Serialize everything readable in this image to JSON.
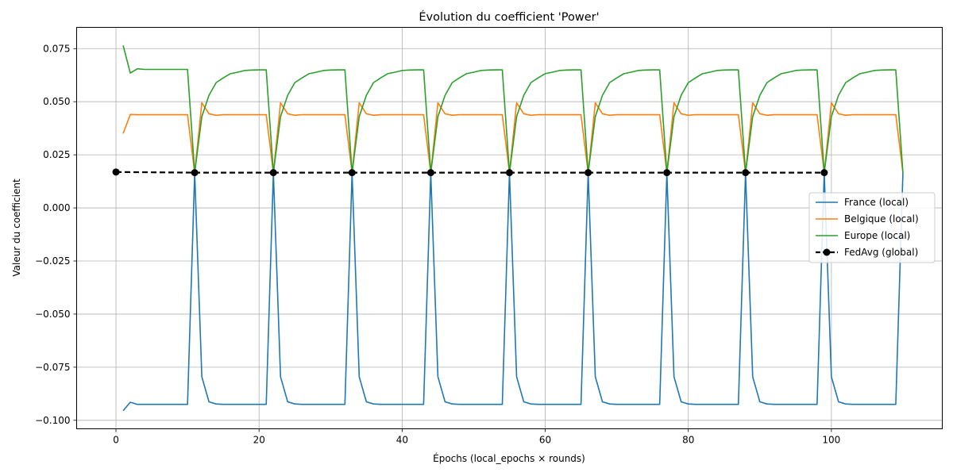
{
  "chart_data": {
    "type": "line",
    "title": "Évolution du coefficient 'Power'",
    "xlabel": "Épochs (local_epochs × rounds)",
    "ylabel": "Valeur du coefficient",
    "xlim": [
      -5.5,
      115.5
    ],
    "ylim": [
      -0.104,
      0.085
    ],
    "x_ticks": [
      0,
      20,
      40,
      60,
      80,
      100
    ],
    "x_tick_labels": [
      "0",
      "20",
      "40",
      "60",
      "80",
      "100"
    ],
    "y_ticks": [
      -0.1,
      -0.075,
      -0.05,
      -0.025,
      0.0,
      0.025,
      0.05,
      0.075
    ],
    "y_tick_labels": [
      "−0.100",
      "−0.075",
      "−0.050",
      "−0.025",
      "0.000",
      "0.025",
      "0.050",
      "0.075"
    ],
    "grid": true,
    "legend_position": "center-right",
    "rounds": 10,
    "local_epochs": 10,
    "series": [
      {
        "name": "France (local)",
        "color": "#1f77b4",
        "style": "solid",
        "first_round": [
          -0.0955,
          -0.0915,
          -0.0925,
          -0.0925,
          -0.0925,
          -0.0925,
          -0.0925,
          -0.0925,
          -0.0925,
          -0.0925
        ],
        "later_rounds": [
          -0.0795,
          -0.0913,
          -0.0923,
          -0.0925,
          -0.0925,
          -0.0925,
          -0.0925,
          -0.0925,
          -0.0925,
          -0.0925
        ],
        "sync_value": 0.0165
      },
      {
        "name": "Belgique (local)",
        "color": "#ff7f0e",
        "style": "solid",
        "first_round": [
          0.035,
          0.044,
          0.0439,
          0.0439,
          0.0439,
          0.0439,
          0.0439,
          0.0439,
          0.0439,
          0.0439
        ],
        "later_rounds": [
          0.0495,
          0.0443,
          0.0436,
          0.0439,
          0.0439,
          0.0439,
          0.0439,
          0.0439,
          0.0439,
          0.0439
        ],
        "sync_value": 0.0165
      },
      {
        "name": "Europe (local)",
        "color": "#2ca02c",
        "style": "solid",
        "first_round": [
          0.0765,
          0.0635,
          0.0655,
          0.0652,
          0.0652,
          0.0652,
          0.0652,
          0.0652,
          0.0652,
          0.0652
        ],
        "later_rounds": [
          0.043,
          0.053,
          0.059,
          0.0612,
          0.0632,
          0.0639,
          0.0647,
          0.0649,
          0.065,
          0.065
        ],
        "sync_value": 0.0165
      },
      {
        "name": "FedAvg (global)",
        "color": "#000000",
        "style": "dashed",
        "marker": "circle",
        "x": [
          0,
          11,
          22,
          33,
          44,
          55,
          66,
          77,
          88,
          99
        ],
        "values": [
          0.0169,
          0.0166,
          0.0166,
          0.0166,
          0.0166,
          0.0166,
          0.0166,
          0.0166,
          0.0166,
          0.0166
        ]
      }
    ]
  }
}
